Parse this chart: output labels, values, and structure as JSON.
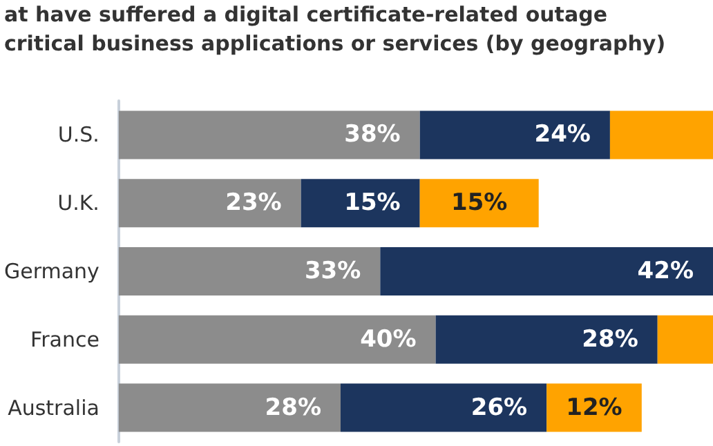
{
  "chart_data": {
    "type": "bar",
    "orientation": "horizontal",
    "stacked": true,
    "title": "at have suffered a digital certificate-related outage",
    "subtitle": "critical business applications or services (by geography)",
    "categories": [
      "U.S.",
      "U.K.",
      "Germany",
      "France",
      "Australia"
    ],
    "xlim": [
      0,
      75
    ],
    "tick_labels": "y",
    "series": [
      {
        "color": "#8c8c8c",
        "values": [
          38,
          23,
          33,
          40,
          28
        ],
        "value_labels": [
          "38%",
          "23%",
          "33%",
          "40%",
          "28%"
        ]
      },
      {
        "color": "#1c355e",
        "values": [
          24,
          15,
          42,
          28,
          26
        ],
        "value_labels": [
          "24%",
          "15%",
          "42%",
          "28%",
          "26%"
        ]
      },
      {
        "color": "#ffa300",
        "values": [
          13,
          15,
          null,
          7,
          12
        ],
        "value_labels": [
          null,
          "15%",
          null,
          null,
          "12%"
        ]
      }
    ]
  }
}
